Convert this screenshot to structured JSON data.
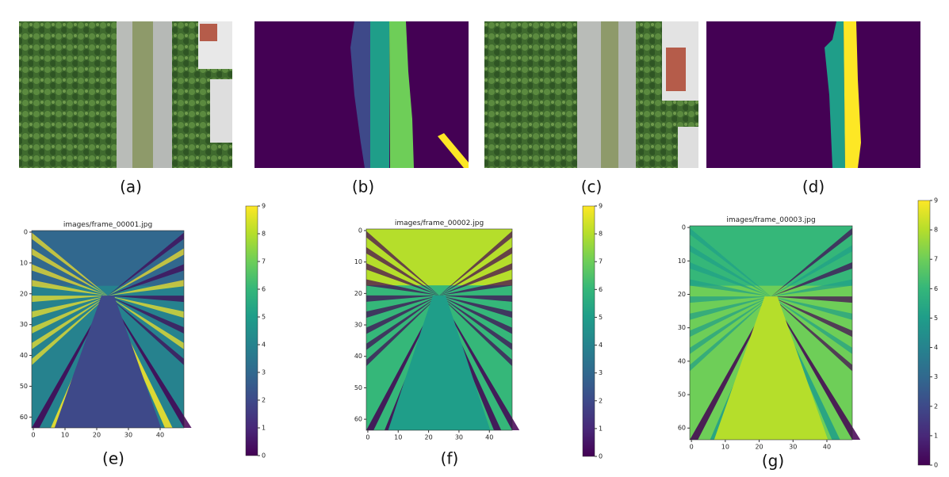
{
  "panels": [
    {
      "label": "(a)"
    },
    {
      "label": "(b)"
    },
    {
      "label": "(c)"
    },
    {
      "label": "(d)"
    }
  ],
  "heatmaps": [
    {
      "label": "(e)",
      "title": "images/frame_00001.jpg",
      "xlim": [
        -0.5,
        47.5
      ],
      "ylim": [
        -0.5,
        63.5
      ],
      "xticks": [
        0,
        10,
        20,
        30,
        40
      ],
      "yticks": [
        0,
        10,
        20,
        30,
        40,
        50,
        60
      ],
      "clim": [
        0,
        9
      ],
      "colorbar_ticks": [
        0,
        1,
        2,
        3,
        4,
        5,
        6,
        7,
        8,
        9
      ]
    },
    {
      "label": "(f)",
      "title": "images/frame_00002.jpg",
      "xlim": [
        -0.5,
        47.5
      ],
      "ylim": [
        -0.5,
        63.5
      ],
      "xticks": [
        0,
        10,
        20,
        30,
        40
      ],
      "yticks": [
        0,
        10,
        20,
        30,
        40,
        50,
        60
      ],
      "clim": [
        0,
        9
      ],
      "colorbar_ticks": [
        0,
        1,
        2,
        3,
        4,
        5,
        6,
        7,
        8,
        9
      ]
    },
    {
      "label": "(g)",
      "title": "images/frame_00003.jpg",
      "xlim": [
        -0.5,
        47.5
      ],
      "ylim": [
        -0.5,
        63.5
      ],
      "xticks": [
        0,
        10,
        20,
        30,
        40
      ],
      "yticks": [
        0,
        10,
        20,
        30,
        40,
        50,
        60
      ],
      "clim": [
        0,
        9
      ],
      "colorbar_ticks": [
        0,
        1,
        2,
        3,
        4,
        5,
        6,
        7,
        8,
        9
      ]
    }
  ]
}
